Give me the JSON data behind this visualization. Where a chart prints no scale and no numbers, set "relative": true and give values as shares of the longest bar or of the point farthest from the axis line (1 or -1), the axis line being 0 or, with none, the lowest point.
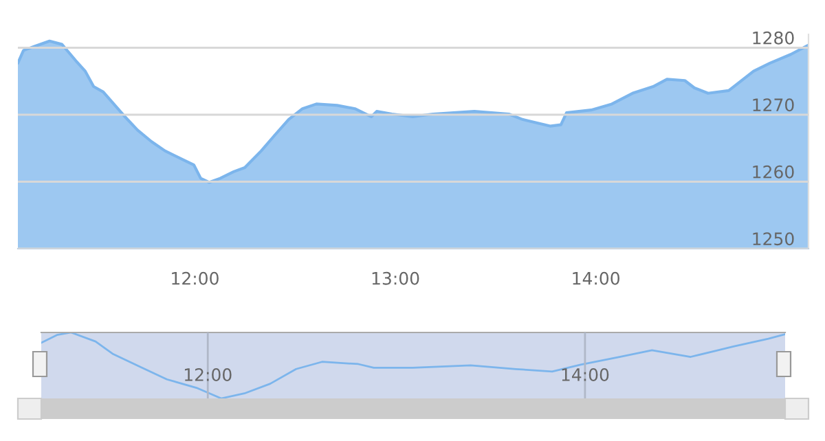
{
  "chart_data": [
    {
      "type": "area",
      "x": [
        11.117,
        11.145,
        11.2,
        11.275,
        11.337,
        11.405,
        11.453,
        11.495,
        11.543,
        11.645,
        11.714,
        11.783,
        11.851,
        11.94,
        11.995,
        12.029,
        12.071,
        12.126,
        12.194,
        12.249,
        12.331,
        12.4,
        12.468,
        12.537,
        12.606,
        12.709,
        12.798,
        12.88,
        12.907,
        12.983,
        13.086,
        13.189,
        13.394,
        13.566,
        13.634,
        13.772,
        13.826,
        13.854,
        13.977,
        14.08,
        14.183,
        14.286,
        14.355,
        14.444,
        14.492,
        14.56,
        14.663,
        14.787,
        14.869,
        14.972,
        15.061
      ],
      "series": [
        {
          "color": "#7cb5ec",
          "values": [
            1277.7,
            1279.6,
            1280.2,
            1281.0,
            1280.5,
            1278.1,
            1276.5,
            1274.2,
            1273.4,
            1269.9,
            1267.7,
            1266.0,
            1264.6,
            1263.3,
            1262.5,
            1260.5,
            1259.9,
            1260.5,
            1261.5,
            1262.1,
            1264.6,
            1267.0,
            1269.3,
            1270.9,
            1271.6,
            1271.4,
            1270.9,
            1269.7,
            1270.5,
            1270.1,
            1269.7,
            1270.1,
            1270.5,
            1270.1,
            1269.3,
            1268.3,
            1268.5,
            1270.3,
            1270.7,
            1271.6,
            1273.2,
            1274.2,
            1275.3,
            1275.1,
            1274.0,
            1273.2,
            1273.6,
            1276.5,
            1277.7,
            1279.0,
            1280.4
          ]
        }
      ],
      "xlim": [
        11.117,
        15.061
      ],
      "ylim": [
        1250,
        1282
      ],
      "xticks": [
        {
          "value": 12,
          "label": "12:00"
        },
        {
          "value": 13,
          "label": "13:00"
        },
        {
          "value": 14,
          "label": "14:00"
        }
      ],
      "yticks": [
        1250,
        1260,
        1270,
        1280
      ],
      "grid": "y"
    },
    {
      "type": "line",
      "relative": true,
      "x": [
        11.117,
        11.2,
        11.275,
        11.405,
        11.495,
        11.645,
        11.783,
        11.94,
        12.071,
        12.194,
        12.331,
        12.468,
        12.606,
        12.798,
        12.88,
        13.086,
        13.394,
        13.634,
        13.826,
        13.977,
        14.183,
        14.355,
        14.56,
        14.787,
        14.972,
        15.061
      ],
      "series": [
        {
          "color": "#7cb5ec",
          "values": [
            0.844,
            0.962,
            1.0,
            0.863,
            0.678,
            0.474,
            0.289,
            0.161,
            0,
            0.076,
            0.223,
            0.445,
            0.555,
            0.521,
            0.464,
            0.464,
            0.502,
            0.445,
            0.408,
            0.512,
            0.63,
            0.73,
            0.63,
            0.787,
            0.905,
            0.972
          ]
        }
      ],
      "xlim": [
        11.117,
        15.061
      ],
      "xticks": [
        {
          "value": 12,
          "label": "12:00"
        },
        {
          "value": 14,
          "label": "14:00"
        }
      ],
      "tick_labels": "x",
      "grid": "x"
    }
  ]
}
